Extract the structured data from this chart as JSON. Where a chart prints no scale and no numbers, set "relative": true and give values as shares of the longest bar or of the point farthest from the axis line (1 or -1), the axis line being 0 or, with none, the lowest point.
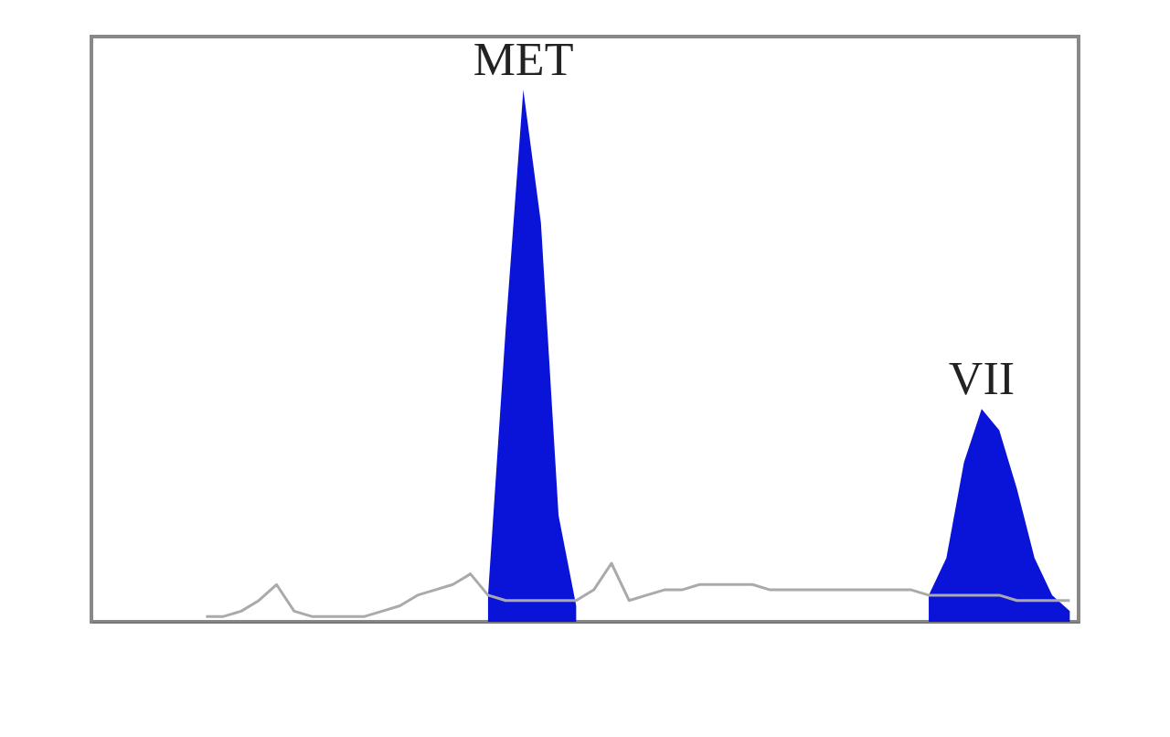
{
  "chart_data": {
    "type": "line",
    "relative": true,
    "tick_labels": false,
    "grid": false,
    "marker": "none",
    "categories": [
      null,
      null,
      null,
      null,
      null,
      null,
      null,
      null,
      null,
      null,
      null,
      null,
      null,
      null,
      null,
      null,
      null,
      null,
      null,
      null,
      null,
      null,
      null,
      null,
      null,
      null,
      null,
      null,
      null,
      null,
      null,
      null,
      null,
      null,
      null,
      null,
      null,
      null,
      null,
      null,
      null,
      null,
      null,
      null,
      null,
      null,
      null,
      null,
      null,
      null,
      null,
      null,
      null,
      null,
      null,
      null
    ],
    "annotations": [
      "MET",
      "VII"
    ],
    "series": [
      {
        "type": "line",
        "color": "#aaaaaa",
        "values": [
          null,
          null,
          null,
          null,
          null,
          null,
          0.01,
          0.01,
          0.02,
          0.04,
          0.07,
          0.02,
          0.01,
          0.01,
          0.01,
          0.01,
          0.02,
          0.03,
          0.05,
          0.06,
          0.07,
          0.09,
          0.05,
          0.04,
          0.04,
          0.04,
          0.04,
          0.04,
          0.06,
          0.11,
          0.04,
          0.05,
          0.06,
          0.06,
          0.07,
          0.07,
          0.07,
          0.07,
          0.06,
          0.06,
          0.06,
          0.06,
          0.06,
          0.06,
          0.06,
          0.06,
          0.06,
          0.05,
          0.05,
          0.05,
          0.05,
          0.05,
          0.04,
          0.04,
          0.04,
          0.04
        ]
      },
      {
        "type": "area",
        "color": "#0a14d8",
        "values": [
          null,
          null,
          null,
          null,
          null,
          null,
          null,
          null,
          null,
          null,
          null,
          null,
          null,
          null,
          null,
          null,
          null,
          null,
          null,
          null,
          null,
          null,
          0.05,
          0.55,
          1.0,
          0.75,
          0.2,
          0.03,
          null,
          null,
          null,
          null,
          null,
          null,
          null,
          null,
          null,
          null,
          null,
          null,
          null,
          null,
          null,
          null,
          null,
          null,
          null,
          null,
          null,
          null,
          null,
          null,
          null,
          null,
          null,
          null
        ]
      },
      {
        "type": "area",
        "color": "#0a14d8",
        "values": [
          null,
          null,
          null,
          null,
          null,
          null,
          null,
          null,
          null,
          null,
          null,
          null,
          null,
          null,
          null,
          null,
          null,
          null,
          null,
          null,
          null,
          null,
          null,
          null,
          null,
          null,
          null,
          null,
          null,
          null,
          null,
          null,
          null,
          null,
          null,
          null,
          null,
          null,
          null,
          null,
          null,
          null,
          null,
          null,
          null,
          null,
          null,
          0.05,
          0.12,
          0.3,
          0.4,
          0.36,
          0.25,
          0.12,
          0.05,
          0.02
        ]
      }
    ]
  }
}
